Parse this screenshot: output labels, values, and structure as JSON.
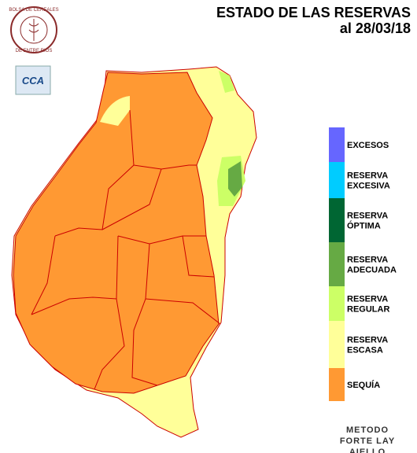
{
  "header": {
    "title": "ESTADO DE LAS RESERVAS",
    "date": "al  28/03/18"
  },
  "logos": {
    "bolsa_top": "BOLSA DE CEREALES",
    "bolsa_bottom": "DE ENTRE RIOS",
    "cca": "CCA"
  },
  "legend": {
    "items": [
      {
        "lines": [
          "EXCESOS"
        ],
        "color": "#6666ff"
      },
      {
        "lines": [
          "RESERVA",
          "EXCESIVA"
        ],
        "color": "#00ccff"
      },
      {
        "lines": [
          "RESERVA",
          "ÓPTIMA"
        ],
        "color": "#006633"
      },
      {
        "lines": [
          "RESERVA",
          "ADECUADA"
        ],
        "color": "#66aa44"
      },
      {
        "lines": [
          "RESERVA",
          "REGULAR"
        ],
        "color": "#ccff66"
      },
      {
        "lines": [
          "RESERVA",
          "ESCASA"
        ],
        "color": "#ffff99"
      },
      {
        "lines": [
          "SEQUÍA"
        ],
        "color": "#ff9933"
      }
    ]
  },
  "method": [
    "METODO",
    "FORTE LAY",
    "AIELLO"
  ]
}
